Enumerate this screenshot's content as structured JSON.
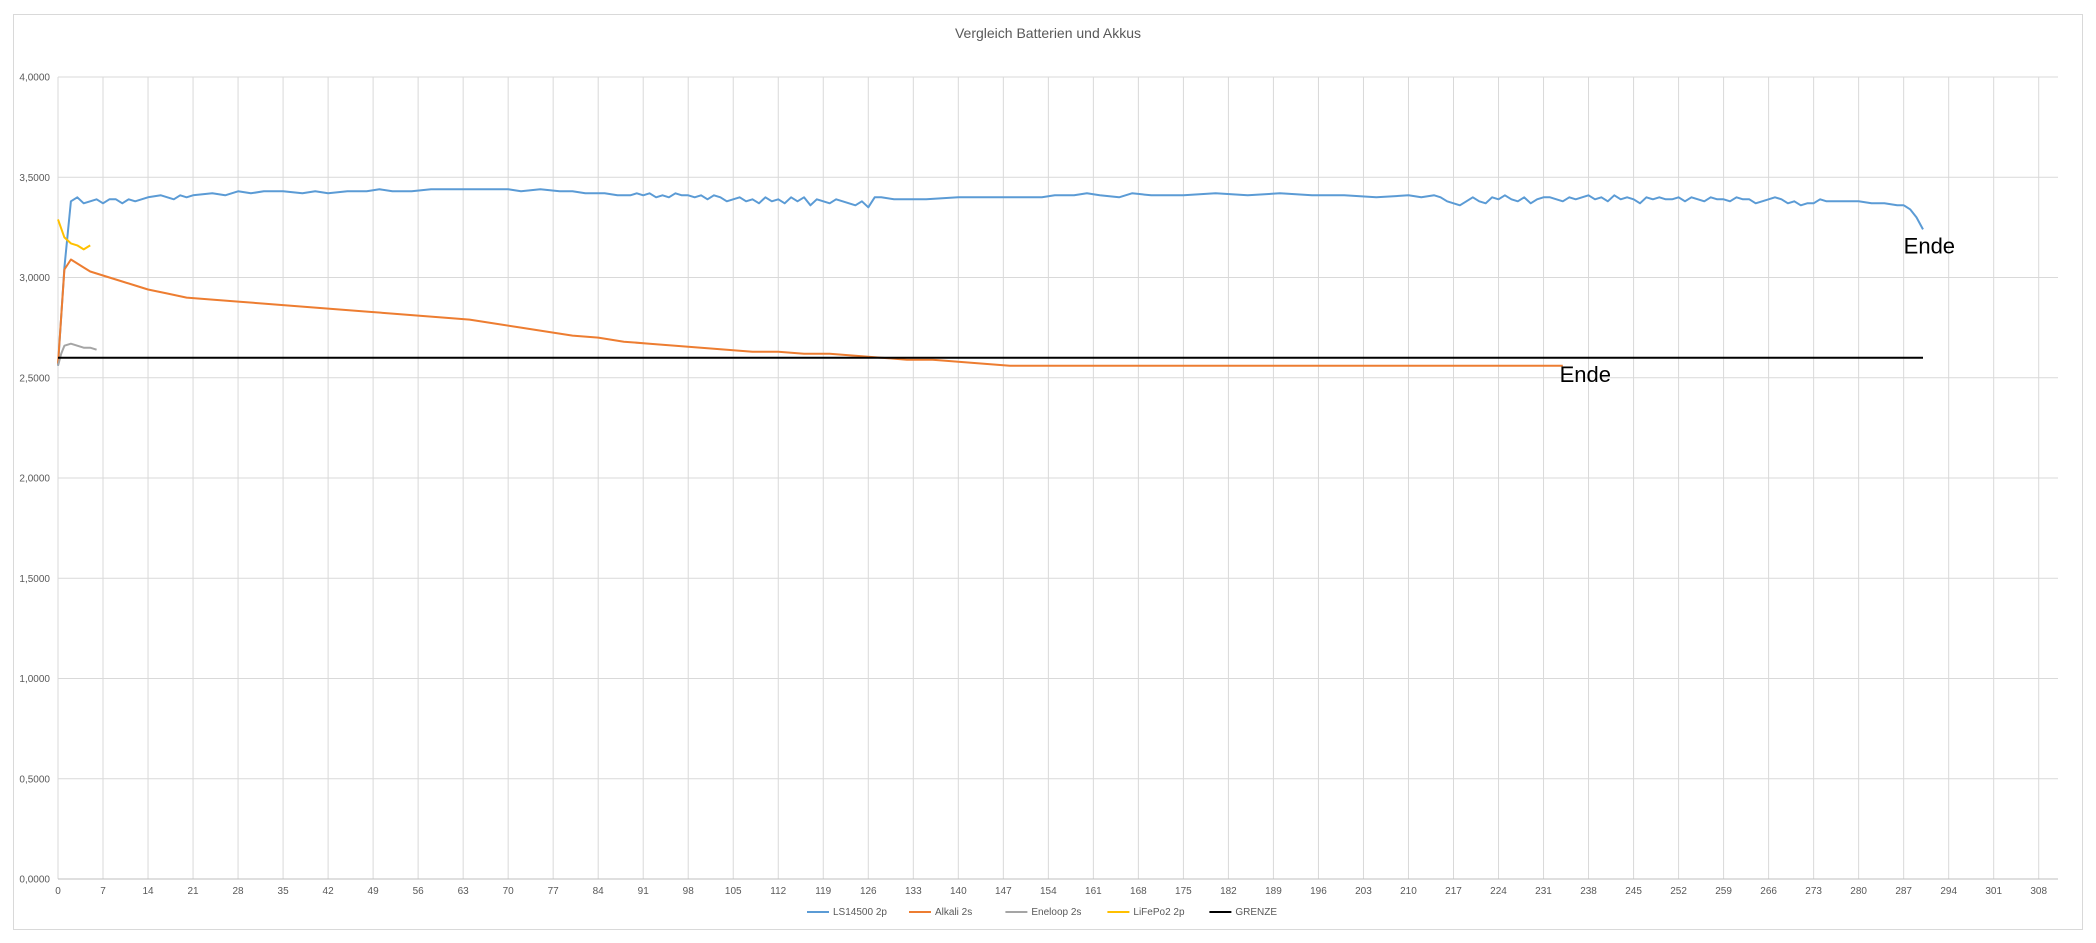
{
  "chart_data": {
    "type": "line",
    "title": "Vergleich Batterien und Akkus",
    "xlabel": "",
    "ylabel": "",
    "xlim": [
      0,
      311
    ],
    "ylim": [
      0,
      4
    ],
    "x_ticks": [
      0,
      7,
      14,
      21,
      28,
      35,
      42,
      49,
      56,
      63,
      70,
      77,
      84,
      91,
      98,
      105,
      112,
      119,
      126,
      133,
      140,
      147,
      154,
      161,
      168,
      175,
      182,
      189,
      196,
      203,
      210,
      217,
      224,
      231,
      238,
      245,
      252,
      259,
      266,
      273,
      280,
      287,
      294,
      301,
      308
    ],
    "y_ticks": [
      "0,0000",
      "0,5000",
      "1,0000",
      "1,5000",
      "2,0000",
      "2,5000",
      "3,0000",
      "3,5000",
      "4,0000"
    ],
    "y_tick_values": [
      0,
      0.5,
      1,
      1.5,
      2,
      2.5,
      3,
      3.5,
      4
    ],
    "grid": true,
    "legend_position": "bottom",
    "series": [
      {
        "name": "LS14500 2p",
        "color": "#5b9bd5",
        "x": [
          0,
          1,
          2,
          3,
          4,
          5,
          6,
          7,
          8,
          9,
          10,
          11,
          12,
          14,
          16,
          18,
          19,
          20,
          21,
          24,
          26,
          28,
          30,
          32,
          35,
          38,
          40,
          42,
          45,
          48,
          50,
          52,
          55,
          58,
          60,
          62,
          65,
          68,
          70,
          72,
          75,
          78,
          80,
          82,
          85,
          87,
          89,
          90,
          91,
          92,
          93,
          94,
          95,
          96,
          97,
          98,
          99,
          100,
          101,
          102,
          103,
          104,
          105,
          106,
          107,
          108,
          109,
          110,
          111,
          112,
          113,
          114,
          115,
          116,
          117,
          118,
          119,
          120,
          121,
          122,
          123,
          124,
          125,
          126,
          127,
          128,
          130,
          132,
          135,
          140,
          145,
          150,
          153,
          155,
          158,
          160,
          162,
          165,
          167,
          170,
          175,
          180,
          185,
          190,
          195,
          200,
          205,
          210,
          212,
          214,
          215,
          216,
          217,
          218,
          219,
          220,
          221,
          222,
          223,
          224,
          225,
          226,
          227,
          228,
          229,
          230,
          231,
          232,
          233,
          234,
          235,
          236,
          237,
          238,
          239,
          240,
          241,
          242,
          243,
          244,
          245,
          246,
          247,
          248,
          249,
          250,
          251,
          252,
          253,
          254,
          255,
          256,
          257,
          258,
          259,
          260,
          261,
          262,
          263,
          264,
          265,
          266,
          267,
          268,
          269,
          270,
          271,
          272,
          273,
          274,
          275,
          276,
          277,
          278,
          280,
          282,
          284,
          286,
          287,
          288,
          289,
          290
        ],
        "y": [
          2.56,
          3.05,
          3.38,
          3.4,
          3.37,
          3.38,
          3.39,
          3.37,
          3.39,
          3.39,
          3.37,
          3.39,
          3.38,
          3.4,
          3.41,
          3.39,
          3.41,
          3.4,
          3.41,
          3.42,
          3.41,
          3.43,
          3.42,
          3.43,
          3.43,
          3.42,
          3.43,
          3.42,
          3.43,
          3.43,
          3.44,
          3.43,
          3.43,
          3.44,
          3.44,
          3.44,
          3.44,
          3.44,
          3.44,
          3.43,
          3.44,
          3.43,
          3.43,
          3.42,
          3.42,
          3.41,
          3.41,
          3.42,
          3.41,
          3.42,
          3.4,
          3.41,
          3.4,
          3.42,
          3.41,
          3.41,
          3.4,
          3.41,
          3.39,
          3.41,
          3.4,
          3.38,
          3.39,
          3.4,
          3.38,
          3.39,
          3.37,
          3.4,
          3.38,
          3.39,
          3.37,
          3.4,
          3.38,
          3.4,
          3.36,
          3.39,
          3.38,
          3.37,
          3.39,
          3.38,
          3.37,
          3.36,
          3.38,
          3.35,
          3.4,
          3.4,
          3.39,
          3.39,
          3.39,
          3.4,
          3.4,
          3.4,
          3.4,
          3.41,
          3.41,
          3.42,
          3.41,
          3.4,
          3.42,
          3.41,
          3.41,
          3.42,
          3.41,
          3.42,
          3.41,
          3.41,
          3.4,
          3.41,
          3.4,
          3.41,
          3.4,
          3.38,
          3.37,
          3.36,
          3.38,
          3.4,
          3.38,
          3.37,
          3.4,
          3.39,
          3.41,
          3.39,
          3.38,
          3.4,
          3.37,
          3.39,
          3.4,
          3.4,
          3.39,
          3.38,
          3.4,
          3.39,
          3.4,
          3.41,
          3.39,
          3.4,
          3.38,
          3.41,
          3.39,
          3.4,
          3.39,
          3.37,
          3.4,
          3.39,
          3.4,
          3.39,
          3.39,
          3.4,
          3.38,
          3.4,
          3.39,
          3.38,
          3.4,
          3.39,
          3.39,
          3.38,
          3.4,
          3.39,
          3.39,
          3.37,
          3.38,
          3.39,
          3.4,
          3.39,
          3.37,
          3.38,
          3.36,
          3.37,
          3.37,
          3.39,
          3.38,
          3.38,
          3.38,
          3.38,
          3.38,
          3.37,
          3.37,
          3.36,
          3.36,
          3.34,
          3.3,
          3.24
        ]
      },
      {
        "name": "Alkali 2s",
        "color": "#ed7d31",
        "x": [
          0,
          1,
          2,
          3,
          4,
          5,
          6,
          8,
          10,
          12,
          14,
          17,
          20,
          24,
          28,
          32,
          36,
          40,
          44,
          48,
          52,
          56,
          60,
          64,
          68,
          72,
          76,
          80,
          84,
          88,
          92,
          96,
          100,
          104,
          108,
          112,
          116,
          120,
          124,
          128,
          132,
          136,
          140,
          144,
          148,
          152,
          160,
          170,
          180,
          190,
          200,
          210,
          220,
          230,
          234
        ],
        "y": [
          2.57,
          3.04,
          3.09,
          3.07,
          3.05,
          3.03,
          3.02,
          3.0,
          2.98,
          2.96,
          2.94,
          2.92,
          2.9,
          2.89,
          2.88,
          2.87,
          2.86,
          2.85,
          2.84,
          2.83,
          2.82,
          2.81,
          2.8,
          2.79,
          2.77,
          2.75,
          2.73,
          2.71,
          2.7,
          2.68,
          2.67,
          2.66,
          2.65,
          2.64,
          2.63,
          2.63,
          2.62,
          2.62,
          2.61,
          2.6,
          2.59,
          2.59,
          2.58,
          2.57,
          2.56,
          2.56,
          2.56,
          2.56,
          2.56,
          2.56,
          2.56,
          2.56,
          2.56,
          2.56,
          2.56
        ]
      },
      {
        "name": "Eneloop 2s",
        "color": "#a5a5a5",
        "x": [
          0,
          0.5,
          1,
          2,
          3,
          4,
          5,
          6
        ],
        "y": [
          2.56,
          2.62,
          2.66,
          2.67,
          2.66,
          2.65,
          2.65,
          2.64
        ]
      },
      {
        "name": "LiFePo2 2p",
        "color": "#ffc000",
        "x": [
          0,
          1,
          2,
          3,
          4,
          5
        ],
        "y": [
          3.29,
          3.2,
          3.17,
          3.16,
          3.14,
          3.16
        ]
      },
      {
        "name": "GRENZE",
        "color": "#000000",
        "x": [
          0,
          290
        ],
        "y": [
          2.6,
          2.6
        ]
      }
    ],
    "annotations": [
      {
        "text": "Ende",
        "x": 287,
        "y": 3.12
      },
      {
        "text": "Ende",
        "x": 233.5,
        "y": 2.48
      }
    ]
  }
}
